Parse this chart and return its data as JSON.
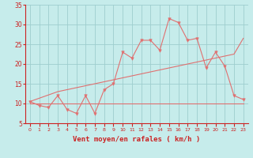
{
  "bg_color": "#c6eceb",
  "grid_color": "#9ecece",
  "line_color": "#e07070",
  "xlabel": "Vent moyen/en rafales ( km/h )",
  "xlim": [
    -0.5,
    23.5
  ],
  "ylim": [
    5,
    35
  ],
  "yticks": [
    5,
    10,
    15,
    20,
    25,
    30,
    35
  ],
  "xticks": [
    0,
    1,
    2,
    3,
    4,
    5,
    6,
    7,
    8,
    9,
    10,
    11,
    12,
    13,
    14,
    15,
    16,
    17,
    18,
    19,
    20,
    21,
    22,
    23
  ],
  "line1_x": [
    0,
    1,
    2,
    3,
    4,
    5,
    6,
    7,
    8,
    9,
    10,
    11,
    12,
    13,
    14,
    15,
    16,
    17,
    18,
    19,
    20,
    21,
    22,
    23
  ],
  "line1_y": [
    10.5,
    9.5,
    9.0,
    12.0,
    8.5,
    7.5,
    12.0,
    7.5,
    13.5,
    15.0,
    23.0,
    21.5,
    26.0,
    26.0,
    23.5,
    31.5,
    30.5,
    26.0,
    26.5,
    19.0,
    23.0,
    19.5,
    12.0,
    11.0
  ],
  "line2_x": [
    0,
    3,
    5,
    7,
    9,
    10,
    11,
    12,
    13,
    14,
    15,
    16,
    17,
    18,
    19,
    20,
    21,
    22,
    23
  ],
  "line2_y": [
    10.5,
    13.0,
    14.0,
    15.0,
    16.0,
    16.5,
    17.0,
    17.5,
    18.0,
    18.5,
    19.0,
    19.5,
    20.0,
    20.5,
    21.0,
    21.5,
    22.0,
    22.5,
    26.5
  ],
  "line3_x": [
    0,
    1,
    2,
    3,
    4,
    5,
    6,
    7,
    8,
    9,
    10,
    11,
    12,
    13,
    14,
    15,
    16,
    17,
    18,
    19,
    20,
    21,
    22,
    23
  ],
  "line3_y": [
    10.0,
    10.0,
    10.0,
    10.0,
    10.0,
    10.0,
    10.0,
    10.0,
    10.0,
    10.0,
    10.0,
    10.0,
    10.0,
    10.0,
    10.0,
    10.0,
    10.0,
    10.0,
    10.0,
    10.0,
    10.0,
    10.0,
    10.0,
    10.0
  ],
  "tick_color": "#cc2222",
  "label_color": "#cc2222",
  "fontsize_xlabel": 6.5,
  "fontsize_tick_x": 4.5,
  "fontsize_tick_y": 5.5
}
